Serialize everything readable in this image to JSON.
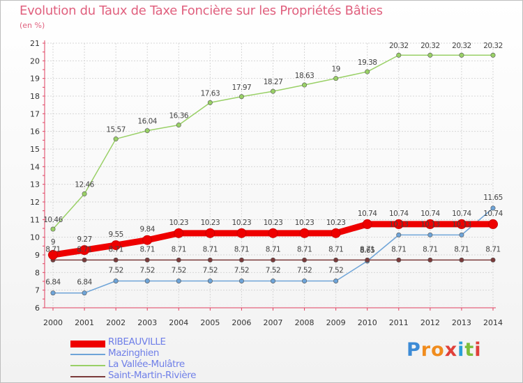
{
  "title": "Evolution du Taux de Taxe Foncière sur les Propriétés Bâties",
  "unit": "(en %)",
  "brand": {
    "letters": [
      "P",
      "r",
      "o",
      "x",
      "i",
      "t",
      "i"
    ],
    "colors": [
      "#3c8bd6",
      "#f08c1e",
      "#f08c1e",
      "#e0403a",
      "#2aa0d8",
      "#7dbe3a",
      "#e0403a"
    ]
  },
  "chart_data": {
    "type": "line",
    "title": "Evolution du Taux de Taxe Foncière sur les Propriétés Bâties",
    "ylabel": "(en %)",
    "x": [
      2000,
      2001,
      2002,
      2003,
      2004,
      2005,
      2006,
      2007,
      2008,
      2009,
      2010,
      2011,
      2012,
      2013,
      2014
    ],
    "ylim": [
      6,
      21
    ],
    "yticks": [
      6,
      7,
      8,
      9,
      10,
      11,
      12,
      13,
      14,
      15,
      16,
      17,
      18,
      19,
      20,
      21
    ],
    "grid": true,
    "legend_position": "bottom-left",
    "series": [
      {
        "name": "RIBEAUVILLE",
        "color": "#ee0000",
        "values": [
          9,
          9.27,
          9.55,
          9.84,
          10.23,
          10.23,
          10.23,
          10.23,
          10.23,
          10.23,
          10.74,
          10.74,
          10.74,
          10.74,
          10.74
        ],
        "labels": [
          "9",
          "9.27",
          "9.55",
          "9.84",
          "10.23",
          "10.23",
          "10.23",
          "10.23",
          "10.23",
          "10.23",
          "10.74",
          "10.74",
          "10.74",
          "10.74",
          "10.74"
        ]
      },
      {
        "name": "Mazinghien",
        "color": "#6ea4d8",
        "values": [
          6.84,
          6.84,
          7.52,
          7.52,
          7.52,
          7.52,
          7.52,
          7.52,
          7.52,
          7.52,
          8.65,
          10.13,
          10.13,
          10.13,
          11.65
        ],
        "labels": [
          "6.84",
          "6.84",
          "7.52",
          "7.52",
          "7.52",
          "7.52",
          "7.52",
          "7.52",
          "7.52",
          "7.52",
          "8.65",
          "10.13",
          "10.13",
          "10.13",
          "11.65"
        ]
      },
      {
        "name": "La Vallée-Mulâtre",
        "color": "#99d066",
        "values": [
          10.46,
          12.46,
          15.57,
          16.04,
          16.36,
          17.63,
          17.97,
          18.27,
          18.63,
          19,
          19.38,
          20.32,
          20.32,
          20.32,
          20.32
        ],
        "labels": [
          "10.46",
          "12.46",
          "15.57",
          "16.04",
          "16.36",
          "17.63",
          "17.97",
          "18.27",
          "18.63",
          "19",
          "19.38",
          "20.32",
          "20.32",
          "20.32",
          "20.32"
        ]
      },
      {
        "name": "Saint-Martin-Rivière",
        "color": "#7a3a3a",
        "values": [
          8.71,
          8.71,
          8.71,
          8.71,
          8.71,
          8.71,
          8.71,
          8.71,
          8.71,
          8.71,
          8.71,
          8.71,
          8.71,
          8.71,
          8.71
        ],
        "labels": [
          "8.71",
          "8.71",
          "8.71",
          "8.71",
          "8.71",
          "8.71",
          "8.71",
          "8.71",
          "8.71",
          "8.71",
          "8.71",
          "8.71",
          "8.71",
          "8.71",
          "8.71"
        ]
      }
    ]
  }
}
